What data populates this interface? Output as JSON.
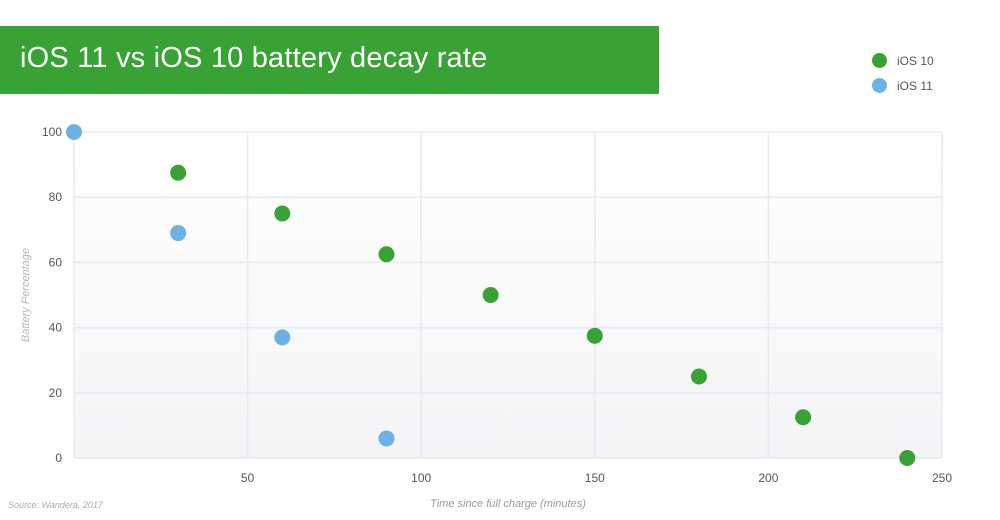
{
  "title": "iOS 11 vs iOS 10 battery decay rate",
  "source": "Source: Wandera, 2017",
  "colors": {
    "banner": "#38a234",
    "ios10": "#38a234",
    "ios11": "#6cb2e2",
    "grid": "#e8e8ef"
  },
  "legend": [
    {
      "label": "iOS 10",
      "color": "#38a234"
    },
    {
      "label": "iOS 11",
      "color": "#6cb2e2"
    }
  ],
  "chart_data": {
    "type": "scatter",
    "title": "iOS 11 vs iOS 10 battery decay rate",
    "xlabel": "Time since full charge (minutes)",
    "ylabel": "Battery Percentage",
    "xlim": [
      0,
      250
    ],
    "ylim": [
      0,
      100
    ],
    "x_ticks": [
      50,
      100,
      150,
      200,
      250
    ],
    "y_ticks": [
      0,
      20,
      40,
      60,
      80,
      100
    ],
    "grid": true,
    "legend_position": "top-right",
    "series": [
      {
        "name": "iOS 10",
        "color": "#38a234",
        "points": [
          [
            30,
            87.5
          ],
          [
            60,
            75
          ],
          [
            90,
            62.5
          ],
          [
            120,
            50
          ],
          [
            150,
            37.5
          ],
          [
            180,
            25
          ],
          [
            210,
            12.5
          ],
          [
            240,
            0
          ]
        ]
      },
      {
        "name": "iOS 11",
        "color": "#6cb2e2",
        "points": [
          [
            0,
            100
          ],
          [
            30,
            69
          ],
          [
            60,
            37
          ],
          [
            90,
            6
          ]
        ]
      }
    ]
  }
}
